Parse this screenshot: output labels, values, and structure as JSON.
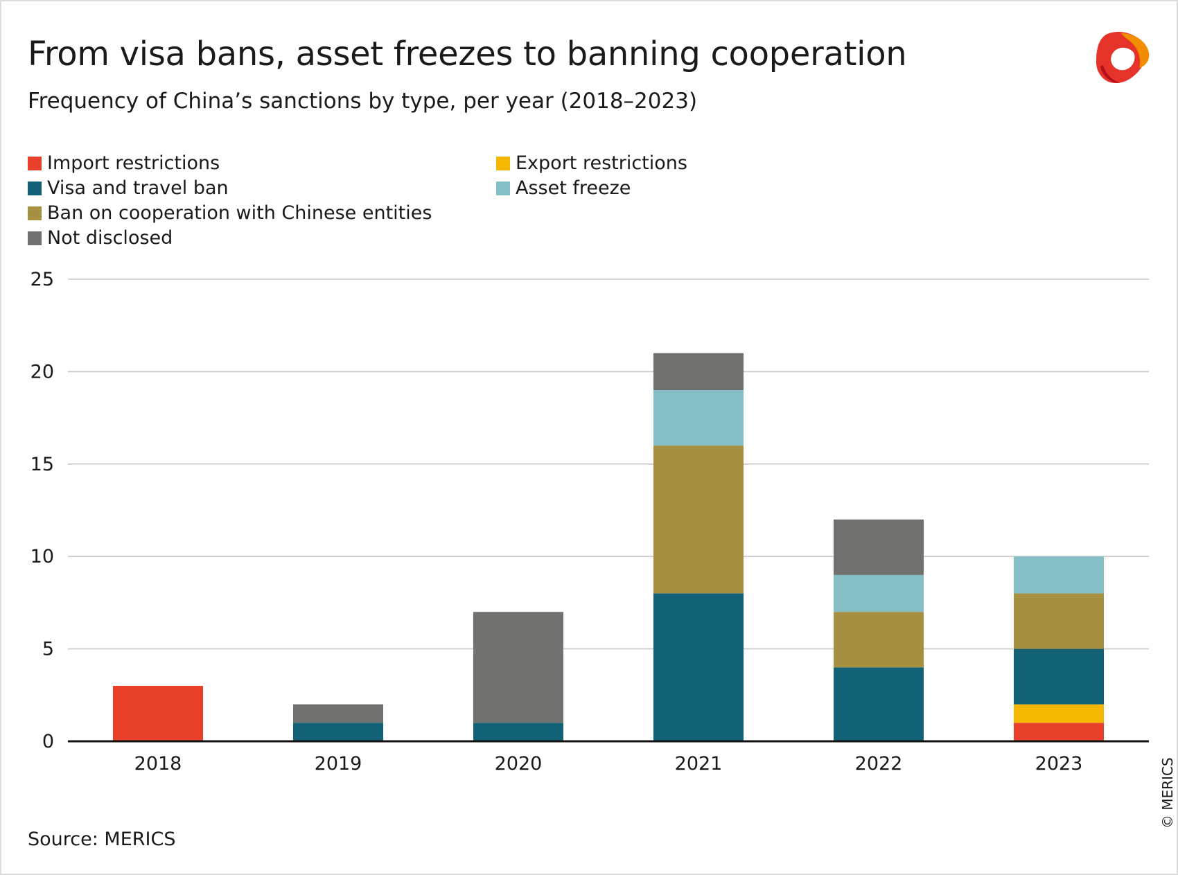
{
  "header": {
    "title": "From visa bans, asset freezes to banning cooperation",
    "subtitle": "Frequency of China’s sanctions by type, per year (2018–2023)"
  },
  "logo": {
    "icon": "merics-logo-icon",
    "colors": [
      "#e63329",
      "#f28c00",
      "#c1121f"
    ]
  },
  "footer": {
    "source": "Source: MERICS",
    "copyright": "© MERICS"
  },
  "chart_data": {
    "type": "bar",
    "stacked": true,
    "title": "From visa bans, asset freezes to banning cooperation",
    "subtitle": "Frequency of China’s sanctions by type, per year (2018–2023)",
    "categories": [
      "2018",
      "2019",
      "2020",
      "2021",
      "2022",
      "2023"
    ],
    "series": [
      {
        "name": "Import restrictions",
        "color": "#e8402b",
        "values": [
          3,
          0,
          0,
          0,
          0,
          1
        ]
      },
      {
        "name": "Export restrictions",
        "color": "#f5b800",
        "values": [
          0,
          0,
          0,
          0,
          0,
          1
        ]
      },
      {
        "name": "Visa and travel ban",
        "color": "#136176",
        "values": [
          0,
          1,
          1,
          8,
          4,
          3
        ]
      },
      {
        "name": "Ban on cooperation with Chinese entities",
        "color": "#a69042",
        "values": [
          0,
          0,
          0,
          8,
          3,
          3
        ]
      },
      {
        "name": "Asset freeze",
        "color": "#84bfc6",
        "values": [
          0,
          0,
          0,
          3,
          2,
          2
        ]
      },
      {
        "name": "Not disclosed",
        "color": "#717170",
        "values": [
          0,
          1,
          6,
          2,
          3,
          0
        ]
      }
    ],
    "legend_order": [
      "Import restrictions",
      "Visa and travel ban",
      "Ban on cooperation with Chinese entities",
      "Not disclosed",
      "Export restrictions",
      "Asset freeze"
    ],
    "yticks": [
      "0",
      "5",
      "10",
      "15",
      "20",
      "25"
    ],
    "ylim": [
      0,
      25
    ],
    "xlabel": "",
    "ylabel": "",
    "grid": true,
    "legend_position": "top-left"
  }
}
